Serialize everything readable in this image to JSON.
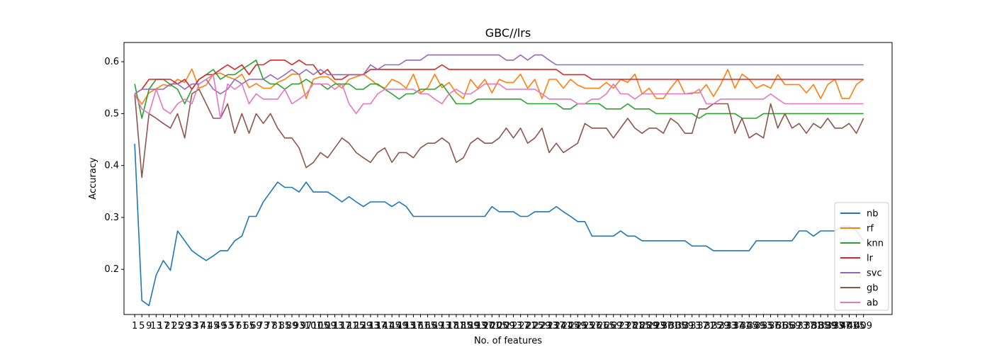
{
  "chart_data": {
    "type": "line",
    "title": "GBC//lrs",
    "xlabel": "No. of features",
    "ylabel": "Accuracy",
    "n_points": 103,
    "xlim": [
      -1.5,
      106
    ],
    "ylim": [
      0.113,
      0.637
    ],
    "yticks": [
      0.2,
      0.3,
      0.4,
      0.5,
      0.6
    ],
    "ytick_labels": [
      "0.2",
      "0.3",
      "0.4",
      "0.5",
      "0.6"
    ],
    "xtick_labels": [
      "1",
      "5",
      "9",
      "13",
      "17",
      "21",
      "25",
      "29",
      "33",
      "37",
      "41",
      "45",
      "49",
      "53",
      "57",
      "61",
      "65",
      "69",
      "73",
      "77",
      "81",
      "85",
      "89",
      "93",
      "97",
      "101",
      "105",
      "109",
      "113",
      "117",
      "121",
      "125",
      "129",
      "133",
      "137",
      "141",
      "145",
      "149",
      "153",
      "157",
      "161",
      "165",
      "169",
      "173",
      "177",
      "181",
      "185",
      "189",
      "193",
      "197",
      "201",
      "205",
      "209",
      "213",
      "217",
      "221",
      "225",
      "229",
      "233",
      "237",
      "241",
      "245",
      "249",
      "253",
      "257",
      "261",
      "265",
      "269",
      "273",
      "277",
      "281",
      "285",
      "289",
      "293",
      "297",
      "301",
      "305",
      "309",
      "313",
      "317",
      "321",
      "325",
      "329",
      "333",
      "337",
      "341",
      "345",
      "349",
      "353",
      "357",
      "361",
      "365",
      "369",
      "373",
      "377",
      "381",
      "385",
      "389",
      "393",
      "397",
      "401",
      "405",
      "409"
    ],
    "legend_position": "lower-right",
    "grid": false,
    "series": [
      {
        "name": "nb",
        "color": "#1f77b4",
        "values": [
          0.442,
          0.14,
          0.13,
          0.189,
          0.217,
          0.198,
          0.274,
          0.255,
          0.236,
          0.226,
          0.217,
          0.226,
          0.236,
          0.236,
          0.255,
          0.264,
          0.302,
          0.302,
          0.33,
          0.349,
          0.368,
          0.358,
          0.358,
          0.349,
          0.368,
          0.349,
          0.349,
          0.349,
          0.34,
          0.33,
          0.34,
          0.33,
          0.321,
          0.33,
          0.33,
          0.33,
          0.321,
          0.33,
          0.321,
          0.302,
          0.302,
          0.302,
          0.302,
          0.302,
          0.302,
          0.302,
          0.302,
          0.302,
          0.302,
          0.302,
          0.321,
          0.311,
          0.311,
          0.311,
          0.302,
          0.302,
          0.311,
          0.311,
          0.311,
          0.321,
          0.311,
          0.302,
          0.292,
          0.292,
          0.264,
          0.264,
          0.264,
          0.264,
          0.274,
          0.264,
          0.264,
          0.255,
          0.255,
          0.255,
          0.255,
          0.255,
          0.255,
          0.255,
          0.245,
          0.245,
          0.245,
          0.236,
          0.236,
          0.236,
          0.236,
          0.236,
          0.236,
          0.255,
          0.255,
          0.255,
          0.255,
          0.255,
          0.255,
          0.274,
          0.274,
          0.264,
          0.274,
          0.274,
          0.274,
          0.283,
          0.283,
          0.274,
          0.255
        ]
      },
      {
        "name": "rf",
        "color": "#ff7f0e",
        "values": [
          0.538,
          0.518,
          0.54,
          0.548,
          0.556,
          0.553,
          0.566,
          0.56,
          0.586,
          0.549,
          0.555,
          0.576,
          0.578,
          0.571,
          0.566,
          0.576,
          0.55,
          0.558,
          0.549,
          0.549,
          0.56,
          0.566,
          0.576,
          0.576,
          0.529,
          0.566,
          0.571,
          0.571,
          0.56,
          0.549,
          0.566,
          0.571,
          0.576,
          0.566,
          0.555,
          0.549,
          0.566,
          0.56,
          0.549,
          0.576,
          0.54,
          0.55,
          0.576,
          0.55,
          0.56,
          0.54,
          0.529,
          0.566,
          0.549,
          0.566,
          0.54,
          0.566,
          0.56,
          0.56,
          0.576,
          0.549,
          0.566,
          0.529,
          0.566,
          0.566,
          0.549,
          0.566,
          0.555,
          0.549,
          0.549,
          0.549,
          0.56,
          0.549,
          0.566,
          0.56,
          0.576,
          0.538,
          0.549,
          0.529,
          0.529,
          0.549,
          0.566,
          0.538,
          0.54,
          0.54,
          0.556,
          0.533,
          0.556,
          0.585,
          0.549,
          0.576,
          0.566,
          0.549,
          0.556,
          0.549,
          0.575,
          0.556,
          0.556,
          0.556,
          0.54,
          0.556,
          0.529,
          0.556,
          0.566,
          0.529,
          0.529,
          0.556,
          0.566
        ]
      },
      {
        "name": "knn",
        "color": "#2ca02c",
        "values": [
          0.557,
          0.491,
          0.547,
          0.566,
          0.566,
          0.556,
          0.547,
          0.519,
          0.547,
          0.566,
          0.575,
          0.585,
          0.566,
          0.575,
          0.575,
          0.585,
          0.594,
          0.603,
          0.566,
          0.557,
          0.557,
          0.547,
          0.557,
          0.557,
          0.566,
          0.557,
          0.557,
          0.547,
          0.557,
          0.557,
          0.557,
          0.547,
          0.547,
          0.557,
          0.557,
          0.547,
          0.538,
          0.528,
          0.538,
          0.538,
          0.547,
          0.547,
          0.547,
          0.557,
          0.538,
          0.519,
          0.519,
          0.519,
          0.528,
          0.528,
          0.528,
          0.528,
          0.528,
          0.528,
          0.528,
          0.519,
          0.519,
          0.519,
          0.519,
          0.519,
          0.509,
          0.509,
          0.519,
          0.519,
          0.519,
          0.519,
          0.509,
          0.509,
          0.509,
          0.519,
          0.509,
          0.509,
          0.509,
          0.5,
          0.5,
          0.5,
          0.5,
          0.5,
          0.5,
          0.491,
          0.5,
          0.5,
          0.5,
          0.5,
          0.5,
          0.491,
          0.491,
          0.491,
          0.5,
          0.5,
          0.5,
          0.5,
          0.5,
          0.5,
          0.5,
          0.5,
          0.5,
          0.5,
          0.5,
          0.5,
          0.5,
          0.5,
          0.5
        ]
      },
      {
        "name": "lr",
        "color": "#d62728",
        "values": [
          0.538,
          0.547,
          0.566,
          0.566,
          0.566,
          0.566,
          0.557,
          0.566,
          0.547,
          0.566,
          0.575,
          0.575,
          0.585,
          0.594,
          0.585,
          0.594,
          0.575,
          0.594,
          0.594,
          0.603,
          0.603,
          0.603,
          0.594,
          0.603,
          0.594,
          0.594,
          0.575,
          0.585,
          0.566,
          0.566,
          0.575,
          0.575,
          0.575,
          0.585,
          0.585,
          0.585,
          0.585,
          0.585,
          0.585,
          0.585,
          0.585,
          0.585,
          0.585,
          0.594,
          0.585,
          0.585,
          0.585,
          0.585,
          0.585,
          0.585,
          0.585,
          0.585,
          0.585,
          0.585,
          0.585,
          0.585,
          0.585,
          0.585,
          0.585,
          0.585,
          0.575,
          0.575,
          0.575,
          0.575,
          0.566,
          0.566,
          0.566,
          0.566,
          0.566,
          0.566,
          0.566,
          0.566,
          0.566,
          0.566,
          0.566,
          0.566,
          0.566,
          0.566,
          0.566,
          0.566,
          0.566,
          0.566,
          0.566,
          0.566,
          0.566,
          0.566,
          0.566,
          0.566,
          0.566,
          0.566,
          0.566,
          0.566,
          0.566,
          0.566,
          0.566,
          0.566,
          0.566,
          0.566,
          0.566,
          0.566,
          0.566,
          0.566,
          0.566
        ]
      },
      {
        "name": "svc",
        "color": "#9467bd",
        "values": [
          0.538,
          0.547,
          0.547,
          0.547,
          0.547,
          0.557,
          0.557,
          0.547,
          0.557,
          0.557,
          0.566,
          0.547,
          0.538,
          0.547,
          0.566,
          0.557,
          0.566,
          0.566,
          0.566,
          0.575,
          0.566,
          0.575,
          0.585,
          0.575,
          0.585,
          0.575,
          0.585,
          0.575,
          0.575,
          0.575,
          0.575,
          0.575,
          0.575,
          0.594,
          0.585,
          0.594,
          0.594,
          0.594,
          0.603,
          0.603,
          0.603,
          0.613,
          0.613,
          0.613,
          0.613,
          0.613,
          0.613,
          0.613,
          0.613,
          0.613,
          0.613,
          0.613,
          0.603,
          0.603,
          0.613,
          0.603,
          0.613,
          0.613,
          0.603,
          0.594,
          0.594,
          0.594,
          0.594,
          0.594,
          0.594,
          0.594,
          0.594,
          0.594,
          0.594,
          0.594,
          0.594,
          0.594,
          0.594,
          0.594,
          0.594,
          0.594,
          0.594,
          0.594,
          0.594,
          0.594,
          0.594,
          0.594,
          0.594,
          0.594,
          0.594,
          0.594,
          0.594,
          0.594,
          0.594,
          0.594,
          0.594,
          0.594,
          0.594,
          0.594,
          0.594,
          0.594,
          0.594,
          0.594,
          0.594,
          0.594,
          0.594,
          0.594,
          0.594
        ]
      },
      {
        "name": "gb",
        "color": "#8c564b",
        "values": [
          0.538,
          0.377,
          0.5,
          0.491,
          0.481,
          0.472,
          0.5,
          0.453,
          0.538,
          0.547,
          0.519,
          0.491,
          0.491,
          0.519,
          0.462,
          0.5,
          0.462,
          0.5,
          0.481,
          0.5,
          0.472,
          0.453,
          0.453,
          0.434,
          0.396,
          0.406,
          0.425,
          0.415,
          0.434,
          0.453,
          0.443,
          0.425,
          0.415,
          0.406,
          0.425,
          0.434,
          0.406,
          0.425,
          0.425,
          0.415,
          0.434,
          0.443,
          0.443,
          0.453,
          0.443,
          0.406,
          0.415,
          0.443,
          0.453,
          0.443,
          0.443,
          0.453,
          0.472,
          0.453,
          0.472,
          0.443,
          0.453,
          0.472,
          0.425,
          0.443,
          0.425,
          0.434,
          0.443,
          0.481,
          0.472,
          0.472,
          0.472,
          0.453,
          0.472,
          0.491,
          0.472,
          0.462,
          0.472,
          0.472,
          0.462,
          0.491,
          0.481,
          0.462,
          0.462,
          0.509,
          0.509,
          0.519,
          0.519,
          0.519,
          0.462,
          0.491,
          0.453,
          0.462,
          0.453,
          0.519,
          0.472,
          0.5,
          0.472,
          0.481,
          0.462,
          0.481,
          0.472,
          0.491,
          0.472,
          0.472,
          0.481,
          0.462,
          0.491
        ]
      },
      {
        "name": "ab",
        "color": "#e377c2",
        "values": [
          0.538,
          0.509,
          0.5,
          0.547,
          0.509,
          0.5,
          0.519,
          0.528,
          0.519,
          0.557,
          0.566,
          0.575,
          0.491,
          0.557,
          0.547,
          0.557,
          0.519,
          0.538,
          0.528,
          0.528,
          0.528,
          0.547,
          0.519,
          0.528,
          0.538,
          0.557,
          0.557,
          0.557,
          0.547,
          0.557,
          0.519,
          0.5,
          0.519,
          0.519,
          0.538,
          0.547,
          0.547,
          0.547,
          0.547,
          0.547,
          0.538,
          0.538,
          0.528,
          0.519,
          0.538,
          0.547,
          0.538,
          0.538,
          0.547,
          0.557,
          0.557,
          0.557,
          0.547,
          0.547,
          0.547,
          0.547,
          0.547,
          0.538,
          0.528,
          0.528,
          0.528,
          0.528,
          0.519,
          0.519,
          0.528,
          0.528,
          0.538,
          0.557,
          0.538,
          0.538,
          0.528,
          0.538,
          0.538,
          0.538,
          0.538,
          0.538,
          0.538,
          0.538,
          0.538,
          0.547,
          0.519,
          0.519,
          0.528,
          0.528,
          0.528,
          0.528,
          0.528,
          0.528,
          0.528,
          0.538,
          0.528,
          0.519,
          0.519,
          0.519,
          0.519,
          0.519,
          0.519,
          0.519,
          0.519,
          0.519,
          0.519,
          0.519,
          0.519
        ]
      }
    ]
  }
}
